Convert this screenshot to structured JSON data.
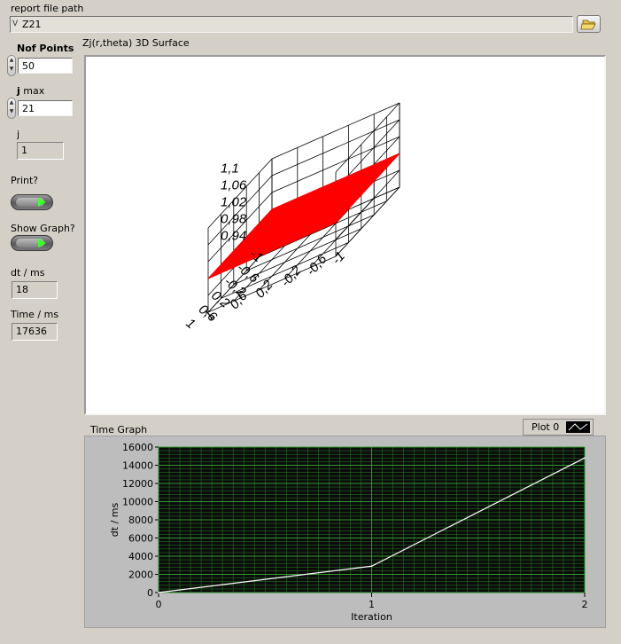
{
  "report": {
    "label": "report file path",
    "value": "Z21",
    "prefix_icon": "path-icon",
    "browse_icon": "folder-open-icon"
  },
  "nof_points": {
    "label": "Nof Points",
    "value": "50"
  },
  "j_max": {
    "label_bold": "j",
    "label_rest": " max",
    "value": "21"
  },
  "j": {
    "label": "j",
    "value": "1"
  },
  "print": {
    "label": "Print?"
  },
  "show_graph": {
    "label": "Show Graph?"
  },
  "dt": {
    "label": "dt / ms",
    "value": "18"
  },
  "time": {
    "label": "Time / ms",
    "value": "17636"
  },
  "surface": {
    "title": "Zj(r,theta) 3D Surface",
    "z_ticks": [
      "1,1",
      "1,06",
      "1,02",
      "0,98",
      "0,94"
    ],
    "y_ticks": [
      "-1",
      "-0,6",
      "-0,2",
      "0,2",
      "0,6",
      "1"
    ],
    "x_ticks": [
      "1",
      "0,6",
      "0,2",
      "-0,2",
      "-0,6",
      "-1"
    ],
    "surface_color": "#ff0000"
  },
  "time_graph": {
    "title": "Time Graph",
    "legend": {
      "label": "Plot 0"
    }
  },
  "chart_data": {
    "type": "line",
    "title": "Time Graph",
    "xlabel": "Iteration",
    "ylabel": "dt / ms",
    "x": [
      0,
      1,
      2
    ],
    "x_ticks": [
      "0",
      "1",
      "2"
    ],
    "y_ticks": [
      "0",
      "2000",
      "4000",
      "6000",
      "8000",
      "10000",
      "12000",
      "14000",
      "16000"
    ],
    "xlim": [
      0,
      2
    ],
    "ylim": [
      0,
      16000
    ],
    "grid": true,
    "series": [
      {
        "name": "Plot 0",
        "values": [
          0,
          2900,
          14800
        ],
        "color": "#ffffff"
      }
    ],
    "background": "#0b0b0b",
    "grid_color": "#1f6e1f"
  }
}
